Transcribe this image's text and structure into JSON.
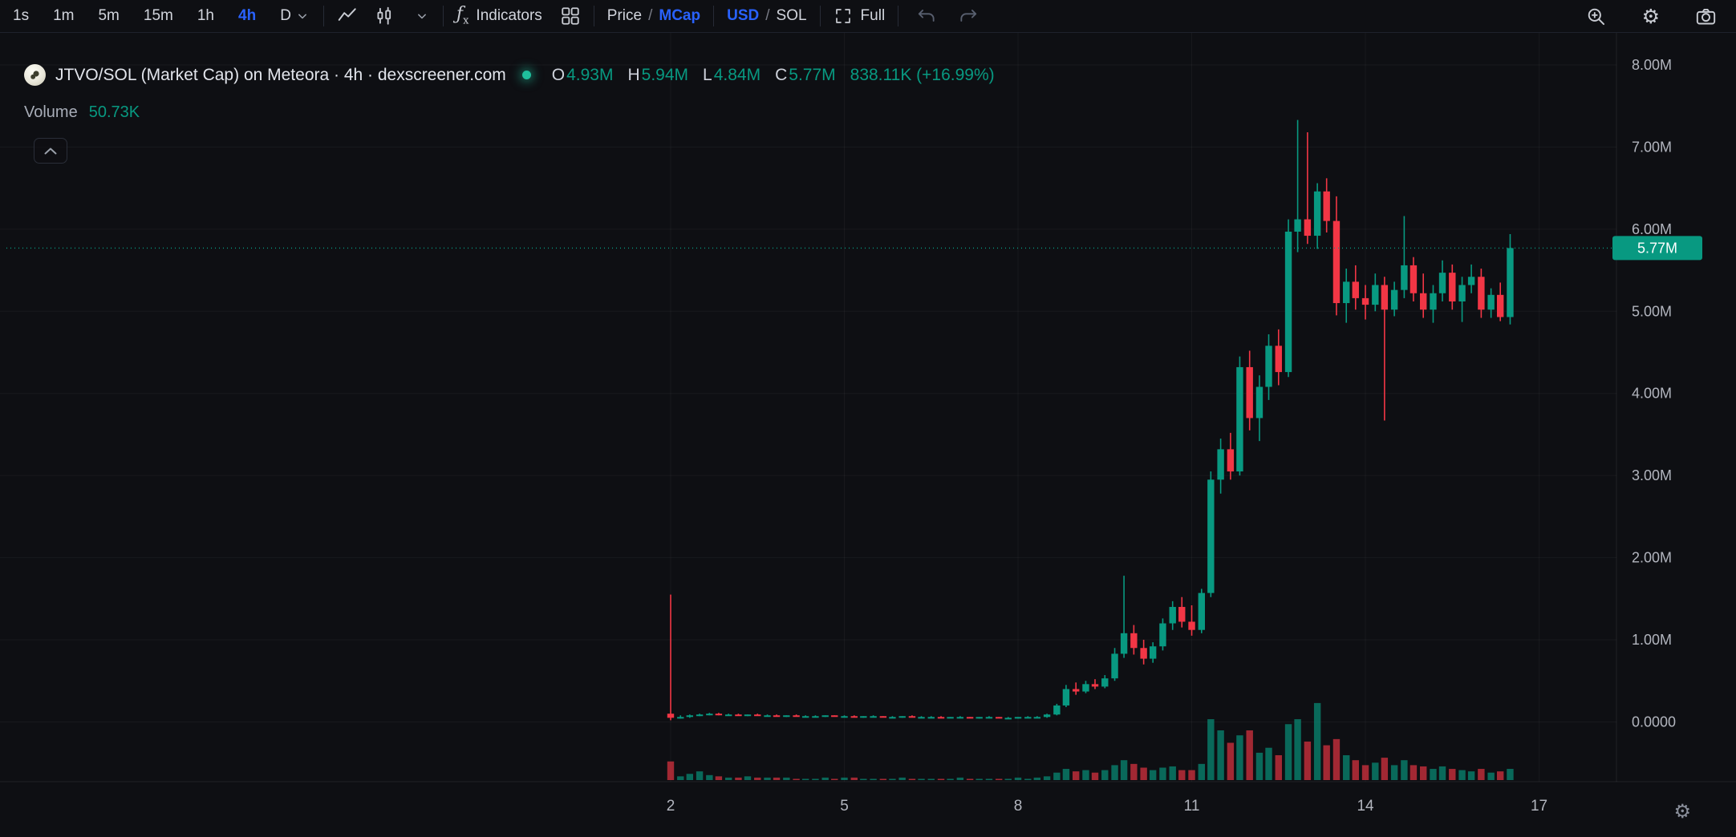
{
  "toolbar": {
    "timeframes": [
      "1s",
      "1m",
      "5m",
      "15m",
      "1h",
      "4h",
      "D"
    ],
    "active_timeframe": "4h",
    "indicators_label": "Indicators",
    "price_label": "Price",
    "mcap_label": "MCap",
    "usd_label": "USD",
    "sol_label": "SOL",
    "slash1": "/",
    "slash2": "/",
    "full_label": "Full"
  },
  "icons": {
    "fx_f": "ƒ",
    "fx_x": "x",
    "gear": "⚙"
  },
  "header": {
    "title": "JTVO/SOL (Market Cap) on Meteora · 4h · dexscreener.com",
    "o_label": "O",
    "o": "4.93M",
    "h_label": "H",
    "h": "5.94M",
    "l_label": "L",
    "l": "4.84M",
    "c_label": "C",
    "c": "5.77M",
    "change": "838.11K (+16.99%)",
    "volume_label": "Volume",
    "volume_value": "50.73K"
  },
  "price_axis": {
    "labels": [
      {
        "text": "8.00M",
        "value": 8
      },
      {
        "text": "7.00M",
        "value": 7
      },
      {
        "text": "6.00M",
        "value": 6
      },
      {
        "text": "5.00M",
        "value": 5
      },
      {
        "text": "4.00M",
        "value": 4
      },
      {
        "text": "3.00M",
        "value": 3
      },
      {
        "text": "2.00M",
        "value": 2
      },
      {
        "text": "1.00M",
        "value": 1
      },
      {
        "text": "0.0000",
        "value": 0
      }
    ]
  },
  "time_axis": {
    "labels": [
      {
        "text": "2",
        "day": 2
      },
      {
        "text": "5",
        "day": 5
      },
      {
        "text": "8",
        "day": 8
      },
      {
        "text": "11",
        "day": 11
      },
      {
        "text": "14",
        "day": 14
      },
      {
        "text": "17",
        "day": 17
      }
    ]
  },
  "price_line": {
    "value": 5.77,
    "label": "5.77M"
  },
  "colors": {
    "up": "#089981",
    "down": "#f23645",
    "accent": "#2962ff",
    "volume_up": "rgba(8,153,129,0.65)",
    "volume_down": "rgba(242,54,69,0.65)",
    "axis_text": "#b2b5be",
    "badge_text": "#ffffff"
  },
  "chart_data": {
    "type": "candlestick",
    "symbol": "JTVO/SOL",
    "metric": "Market Cap",
    "interval": "4h",
    "value_unit": "millions",
    "x_unit": "day of month",
    "y_range": [
      0,
      8
    ],
    "last_close": 5.77,
    "candles": [
      [
        2.0,
        0.1,
        1.55,
        0.02,
        0.05,
        15
      ],
      [
        2.17,
        0.05,
        0.08,
        0.04,
        0.06,
        3
      ],
      [
        2.33,
        0.06,
        0.09,
        0.05,
        0.08,
        5
      ],
      [
        2.5,
        0.08,
        0.1,
        0.07,
        0.09,
        7
      ],
      [
        2.67,
        0.09,
        0.11,
        0.08,
        0.1,
        4
      ],
      [
        2.83,
        0.1,
        0.11,
        0.08,
        0.09,
        3
      ],
      [
        3.0,
        0.09,
        0.1,
        0.08,
        0.09,
        2
      ],
      [
        3.17,
        0.09,
        0.1,
        0.08,
        0.08,
        2
      ],
      [
        3.33,
        0.08,
        0.09,
        0.07,
        0.09,
        3
      ],
      [
        3.5,
        0.09,
        0.1,
        0.08,
        0.08,
        2
      ],
      [
        3.67,
        0.08,
        0.09,
        0.07,
        0.08,
        2
      ],
      [
        3.83,
        0.08,
        0.09,
        0.07,
        0.07,
        2
      ],
      [
        4.0,
        0.07,
        0.08,
        0.06,
        0.08,
        2
      ],
      [
        4.17,
        0.08,
        0.09,
        0.07,
        0.07,
        1
      ],
      [
        4.33,
        0.07,
        0.08,
        0.06,
        0.07,
        1
      ],
      [
        4.5,
        0.07,
        0.08,
        0.06,
        0.07,
        1
      ],
      [
        4.67,
        0.07,
        0.08,
        0.06,
        0.08,
        2
      ],
      [
        4.83,
        0.08,
        0.08,
        0.07,
        0.07,
        1
      ],
      [
        5.0,
        0.07,
        0.08,
        0.06,
        0.07,
        2
      ],
      [
        5.17,
        0.07,
        0.08,
        0.06,
        0.06,
        2
      ],
      [
        5.33,
        0.06,
        0.07,
        0.05,
        0.07,
        1
      ],
      [
        5.5,
        0.07,
        0.08,
        0.06,
        0.07,
        1
      ],
      [
        5.67,
        0.07,
        0.07,
        0.06,
        0.06,
        1
      ],
      [
        5.83,
        0.06,
        0.07,
        0.05,
        0.06,
        1
      ],
      [
        6.0,
        0.06,
        0.07,
        0.05,
        0.07,
        2
      ],
      [
        6.17,
        0.07,
        0.08,
        0.06,
        0.06,
        1
      ],
      [
        6.33,
        0.06,
        0.07,
        0.05,
        0.06,
        1
      ],
      [
        6.5,
        0.06,
        0.07,
        0.05,
        0.06,
        1
      ],
      [
        6.67,
        0.06,
        0.07,
        0.05,
        0.05,
        1
      ],
      [
        6.83,
        0.05,
        0.06,
        0.05,
        0.06,
        1
      ],
      [
        7.0,
        0.06,
        0.07,
        0.05,
        0.06,
        2
      ],
      [
        7.17,
        0.06,
        0.06,
        0.05,
        0.05,
        1
      ],
      [
        7.33,
        0.05,
        0.06,
        0.04,
        0.06,
        1
      ],
      [
        7.5,
        0.06,
        0.07,
        0.05,
        0.06,
        1
      ],
      [
        7.67,
        0.06,
        0.06,
        0.05,
        0.05,
        1
      ],
      [
        7.83,
        0.05,
        0.06,
        0.04,
        0.05,
        1
      ],
      [
        8.0,
        0.05,
        0.06,
        0.04,
        0.06,
        2
      ],
      [
        8.17,
        0.06,
        0.07,
        0.05,
        0.06,
        1
      ],
      [
        8.33,
        0.06,
        0.07,
        0.05,
        0.06,
        2
      ],
      [
        8.5,
        0.06,
        0.1,
        0.05,
        0.09,
        3
      ],
      [
        8.67,
        0.09,
        0.22,
        0.08,
        0.2,
        6
      ],
      [
        8.83,
        0.2,
        0.45,
        0.18,
        0.4,
        9
      ],
      [
        9.0,
        0.4,
        0.48,
        0.33,
        0.37,
        7
      ],
      [
        9.17,
        0.37,
        0.5,
        0.35,
        0.46,
        8
      ],
      [
        9.33,
        0.46,
        0.52,
        0.4,
        0.43,
        6
      ],
      [
        9.5,
        0.43,
        0.57,
        0.41,
        0.53,
        8
      ],
      [
        9.67,
        0.53,
        0.9,
        0.5,
        0.83,
        12
      ],
      [
        9.83,
        0.83,
        1.78,
        0.78,
        1.08,
        16
      ],
      [
        10.0,
        1.08,
        1.18,
        0.82,
        0.9,
        13
      ],
      [
        10.17,
        0.9,
        1.0,
        0.7,
        0.77,
        10
      ],
      [
        10.33,
        0.77,
        0.97,
        0.72,
        0.92,
        8
      ],
      [
        10.5,
        0.92,
        1.26,
        0.87,
        1.2,
        10
      ],
      [
        10.67,
        1.2,
        1.47,
        1.12,
        1.4,
        11
      ],
      [
        10.83,
        1.4,
        1.52,
        1.15,
        1.22,
        8
      ],
      [
        11.0,
        1.22,
        1.42,
        1.05,
        1.12,
        8
      ],
      [
        11.17,
        1.12,
        1.62,
        1.08,
        1.57,
        13
      ],
      [
        11.33,
        1.57,
        3.05,
        1.52,
        2.95,
        49
      ],
      [
        11.5,
        2.95,
        3.45,
        2.78,
        3.32,
        40
      ],
      [
        11.67,
        3.32,
        3.52,
        2.95,
        3.05,
        30
      ],
      [
        11.83,
        3.05,
        4.45,
        3.0,
        4.32,
        36
      ],
      [
        12.0,
        4.32,
        4.52,
        3.55,
        3.7,
        40
      ],
      [
        12.17,
        3.7,
        4.22,
        3.42,
        4.08,
        22
      ],
      [
        12.33,
        4.08,
        4.72,
        3.92,
        4.58,
        26
      ],
      [
        12.5,
        4.58,
        4.78,
        4.1,
        4.26,
        20
      ],
      [
        12.67,
        4.26,
        6.12,
        4.2,
        5.97,
        45
      ],
      [
        12.83,
        5.97,
        7.33,
        5.72,
        6.12,
        49
      ],
      [
        13.0,
        6.12,
        7.18,
        5.82,
        5.92,
        31
      ],
      [
        13.17,
        5.92,
        6.56,
        5.76,
        6.46,
        62
      ],
      [
        13.33,
        6.46,
        6.62,
        5.96,
        6.1,
        28
      ],
      [
        13.5,
        6.1,
        6.4,
        4.95,
        5.1,
        33
      ],
      [
        13.67,
        5.1,
        5.52,
        4.86,
        5.36,
        20
      ],
      [
        13.83,
        5.36,
        5.56,
        5.02,
        5.16,
        16
      ],
      [
        14.0,
        5.16,
        5.32,
        4.9,
        5.08,
        12
      ],
      [
        14.17,
        5.08,
        5.46,
        5.0,
        5.32,
        14
      ],
      [
        14.33,
        5.32,
        5.42,
        3.67,
        5.02,
        18
      ],
      [
        14.5,
        5.02,
        5.36,
        4.94,
        5.26,
        12
      ],
      [
        14.67,
        5.26,
        6.16,
        5.16,
        5.56,
        16
      ],
      [
        14.83,
        5.56,
        5.66,
        5.12,
        5.22,
        12
      ],
      [
        15.0,
        5.22,
        5.46,
        4.92,
        5.02,
        11
      ],
      [
        15.17,
        5.02,
        5.32,
        4.86,
        5.22,
        9
      ],
      [
        15.33,
        5.22,
        5.62,
        5.12,
        5.47,
        11
      ],
      [
        15.5,
        5.47,
        5.57,
        5.02,
        5.12,
        9
      ],
      [
        15.67,
        5.12,
        5.42,
        4.87,
        5.32,
        8
      ],
      [
        15.83,
        5.32,
        5.57,
        5.22,
        5.42,
        7
      ],
      [
        16.0,
        5.42,
        5.52,
        4.92,
        5.02,
        9
      ],
      [
        16.17,
        5.02,
        5.28,
        4.92,
        5.2,
        6
      ],
      [
        16.33,
        5.2,
        5.35,
        4.88,
        4.93,
        7
      ],
      [
        16.5,
        4.93,
        5.94,
        4.84,
        5.77,
        9
      ]
    ]
  }
}
